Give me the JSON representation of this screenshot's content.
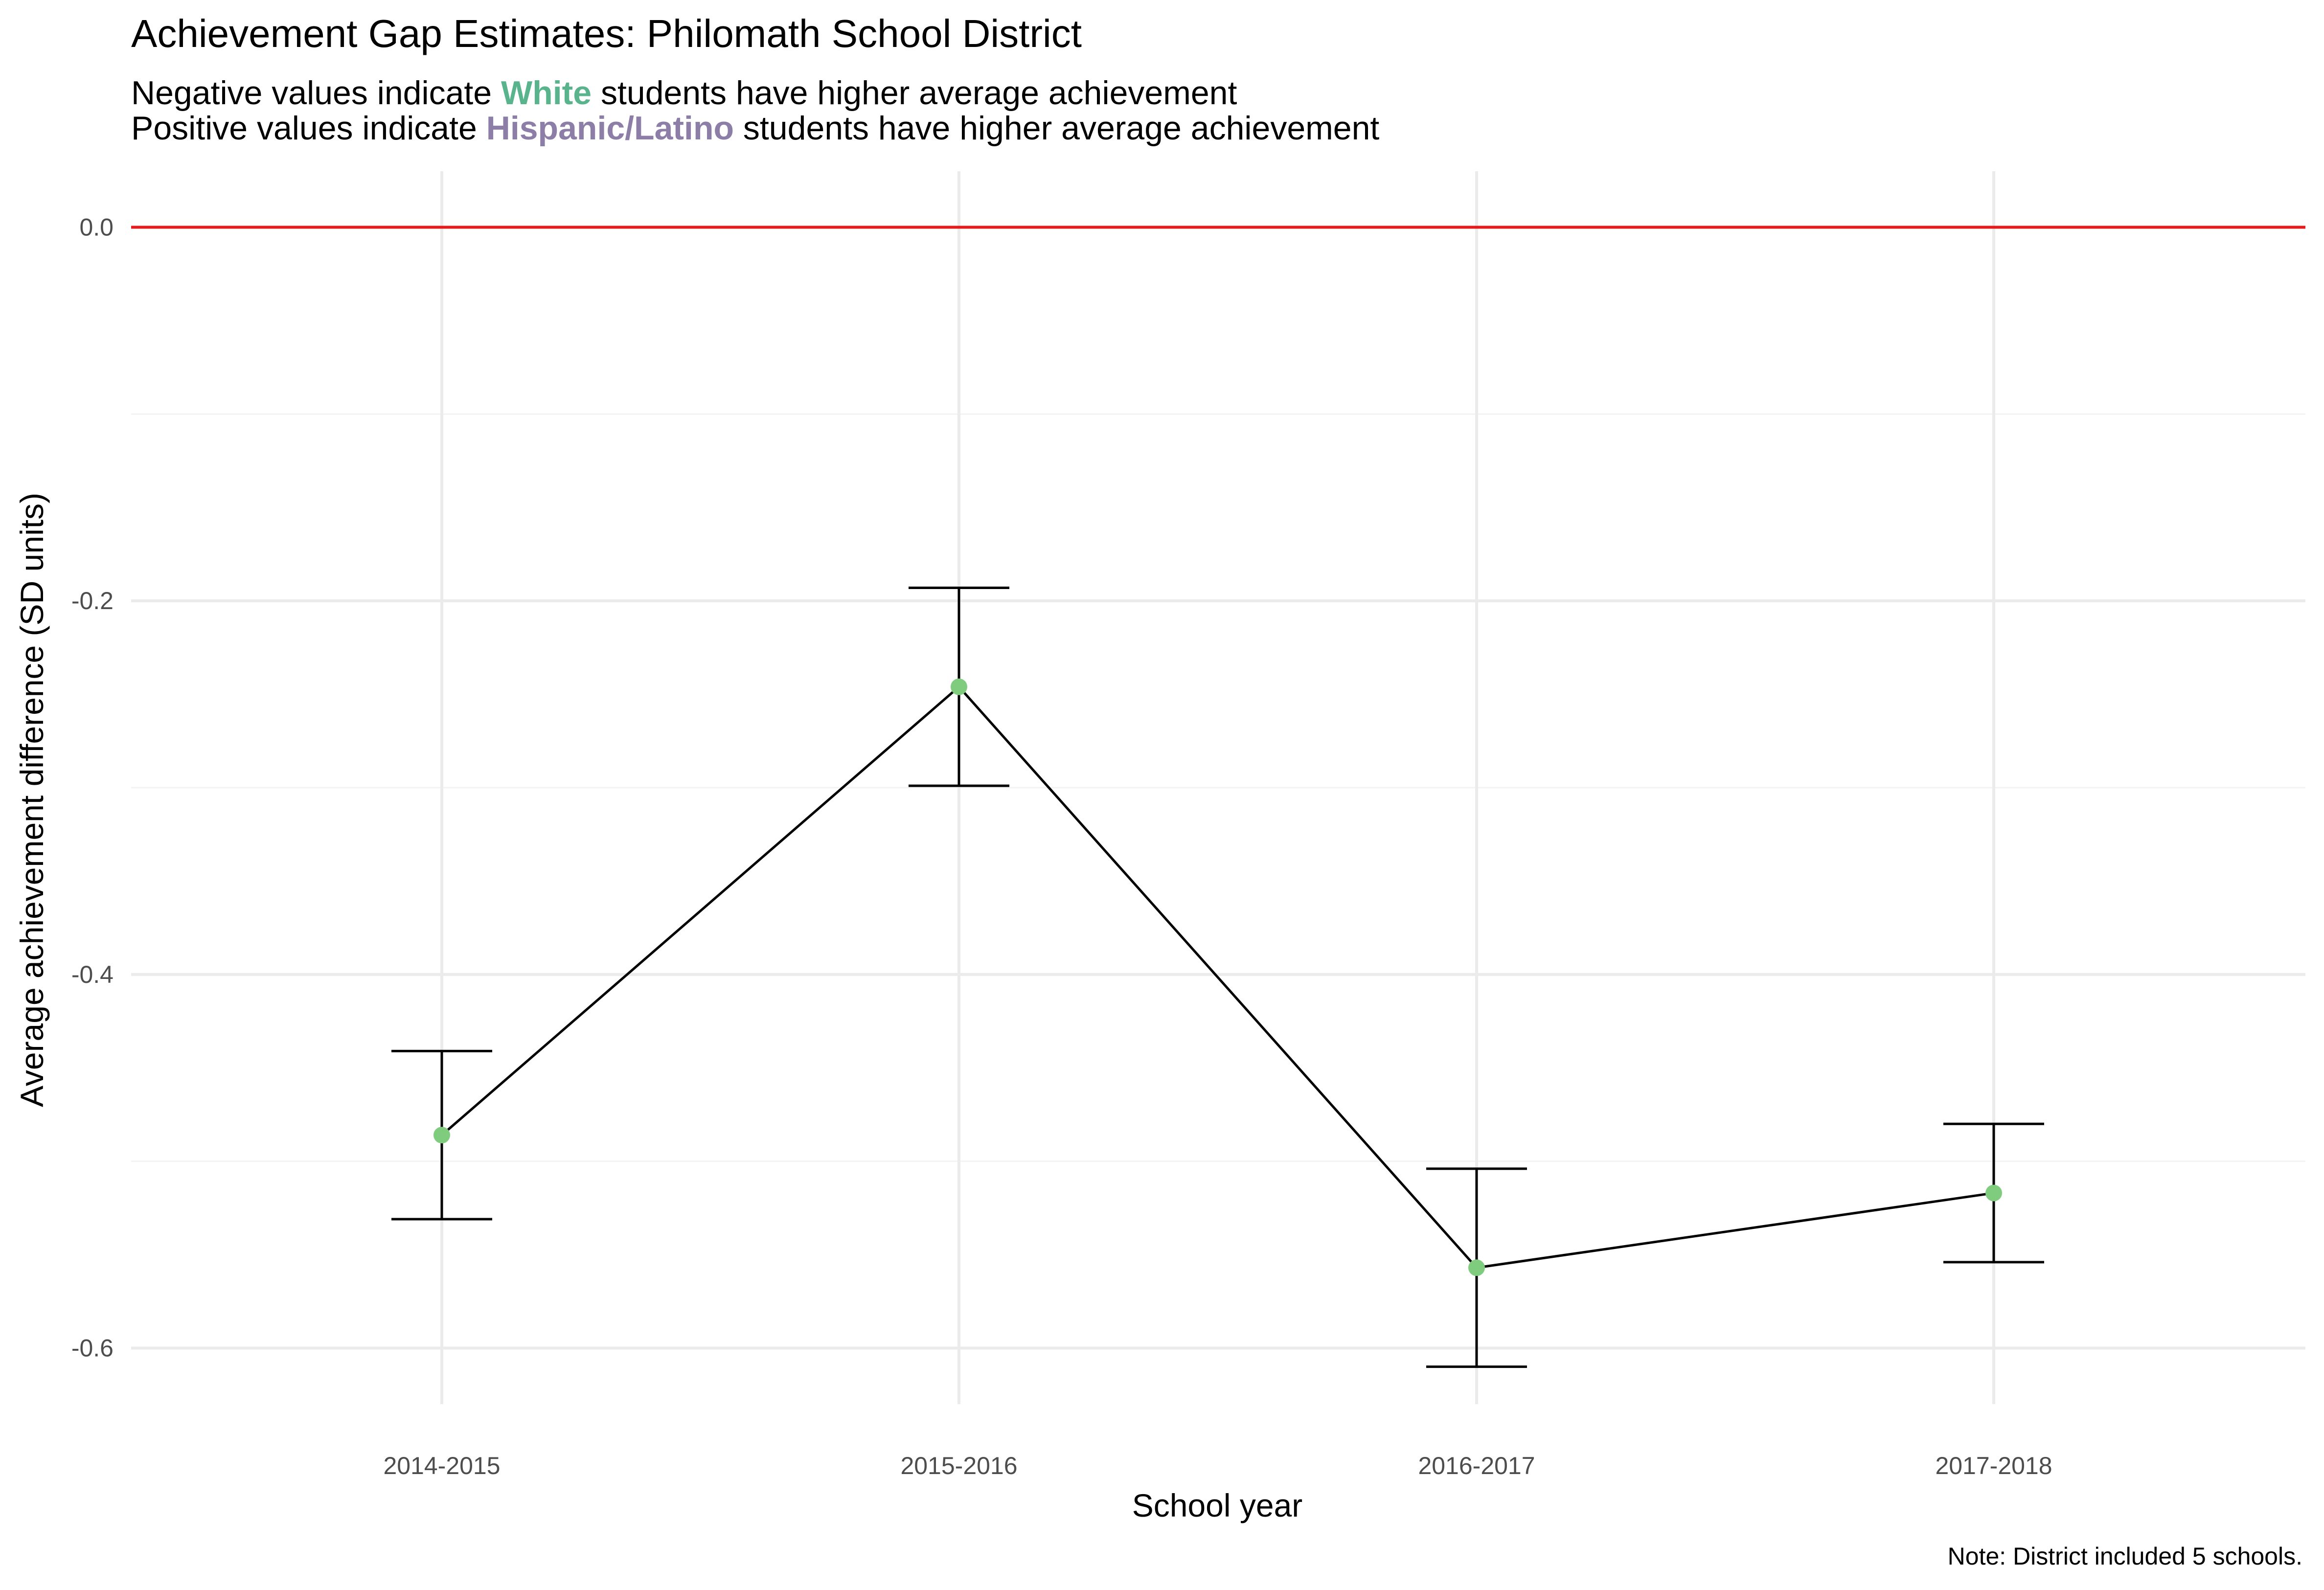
{
  "chart_data": {
    "type": "line",
    "title": "Achievement Gap Estimates: Philomath School District",
    "subtitle_lines": [
      {
        "before": "Negative values indicate ",
        "highlight": "White",
        "after": " students have higher average achievement"
      },
      {
        "before": "Positive values indicate ",
        "highlight": "Hispanic/Latino",
        "after": " students have higher average achievement"
      }
    ],
    "xlabel": "School year",
    "ylabel": "Average achievement difference (SD units)",
    "caption": "Note: District included 5 schools.",
    "categories": [
      "2014-2015",
      "2015-2016",
      "2016-2017",
      "2017-2018"
    ],
    "values": [
      -0.486,
      -0.246,
      -0.557,
      -0.517
    ],
    "error_lower": [
      -0.531,
      -0.299,
      -0.61,
      -0.554
    ],
    "error_upper": [
      -0.441,
      -0.193,
      -0.504,
      -0.48
    ],
    "reference_line": 0.0,
    "ylim": [
      -0.63,
      0.03
    ],
    "yticks": [
      0.0,
      -0.2,
      -0.4,
      -0.6
    ],
    "ytick_labels": [
      "0.0",
      "-0.2",
      "-0.4",
      "-0.6"
    ],
    "grid": true,
    "legend": "none",
    "colors": {
      "point": "#7fcc7f",
      "line": "#000000",
      "errorbar": "#000000",
      "reference_line": "#e41a1c",
      "white_highlight": "#59b38c",
      "hispanic_highlight": "#8c7ea6"
    }
  }
}
